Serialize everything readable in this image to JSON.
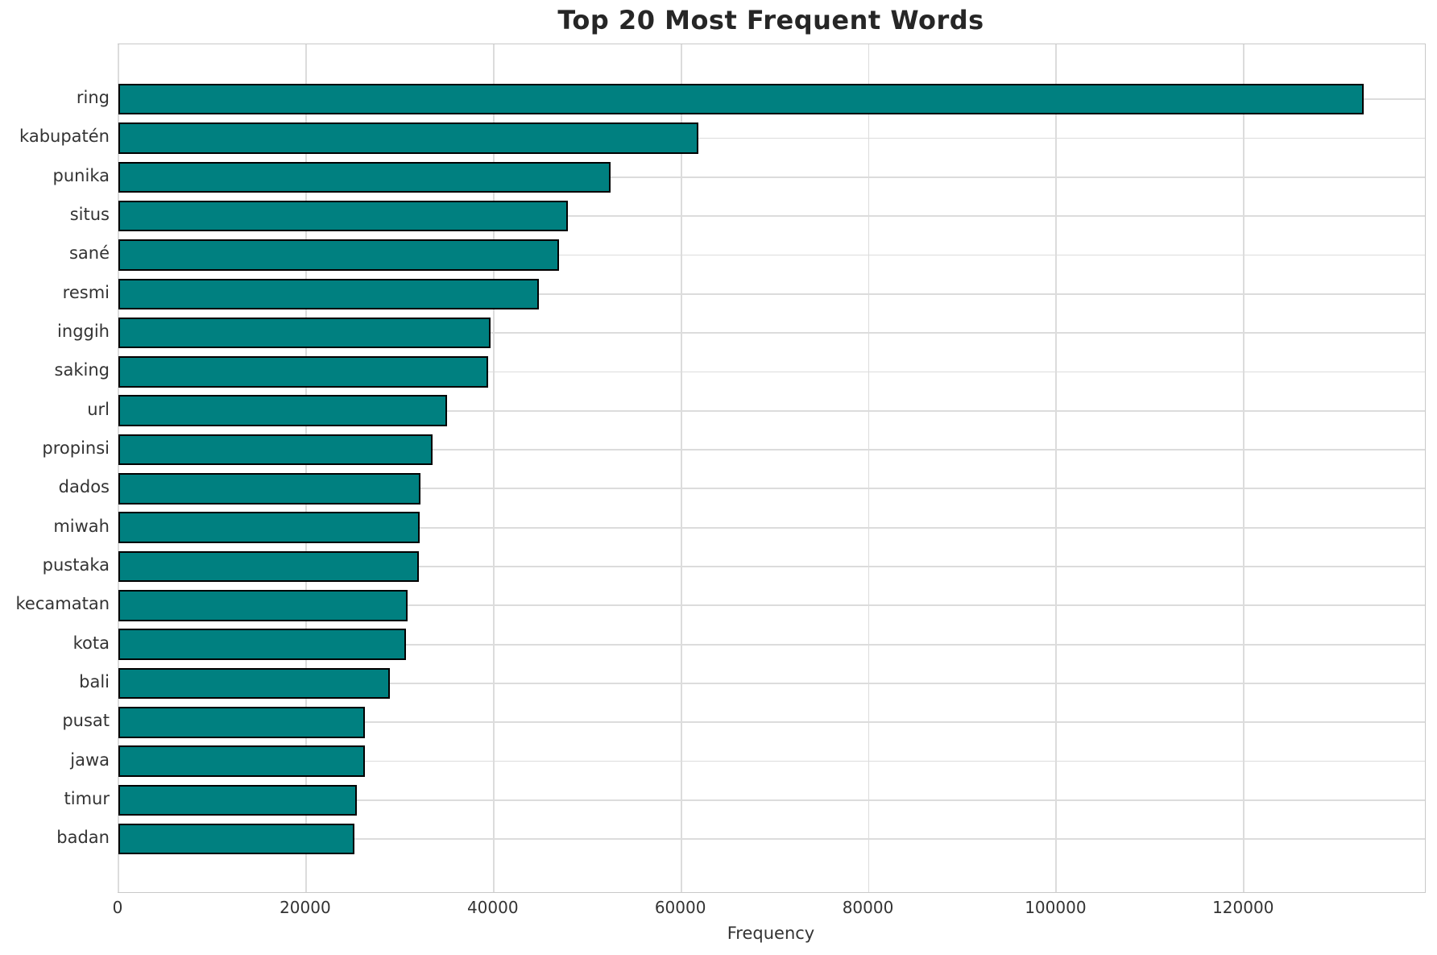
{
  "chart_data": {
    "type": "bar",
    "orientation": "horizontal",
    "title": "Top 20 Most Frequent Words",
    "xlabel": "Frequency",
    "ylabel": "",
    "categories": [
      "ring",
      "kabupatén",
      "punika",
      "situs",
      "sané",
      "resmi",
      "inggih",
      "saking",
      "url",
      "propinsi",
      "dados",
      "miwah",
      "pustaka",
      "kecamatan",
      "kota",
      "bali",
      "pusat",
      "jawa",
      "timur",
      "badan"
    ],
    "values": [
      132800,
      61800,
      52500,
      47900,
      47000,
      44800,
      39700,
      39400,
      35000,
      33500,
      32200,
      32100,
      32000,
      30800,
      30700,
      28900,
      26300,
      26300,
      25400,
      25200
    ],
    "xlim": [
      0,
      139300
    ],
    "xticks": [
      0,
      20000,
      40000,
      60000,
      80000,
      100000,
      120000
    ],
    "grid": true,
    "legend": null,
    "bar_color": "#008080",
    "bar_edge_color": "#000000",
    "grid_color": "#dcdcdc",
    "spine_color": "#c9c9c9",
    "title_color": "#262626",
    "tick_label_color": "#333333",
    "background_color": "#ffffff"
  }
}
